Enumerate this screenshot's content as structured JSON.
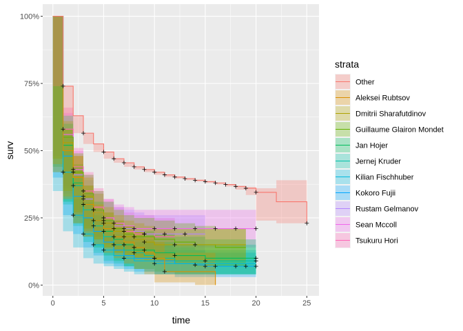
{
  "chart_data": {
    "type": "line",
    "subtype": "kaplan-meier step survival curves with confidence bands and censor marks",
    "xlabel": "time",
    "ylabel": "surv",
    "xlim": [
      -1,
      26.2
    ],
    "ylim": [
      -0.04,
      1.045
    ],
    "x_ticks": [
      0,
      5,
      10,
      15,
      20,
      25
    ],
    "y_ticks": [
      0,
      0.25,
      0.5,
      0.75,
      1.0
    ],
    "y_tick_labels": [
      "0%",
      "25%",
      "50%",
      "75%",
      "100%"
    ],
    "grid": true,
    "panel_background": "#EBEBEB",
    "legend_title": "strata",
    "legend_position": "right",
    "series": [
      {
        "name": "Other",
        "color": "#F8766D",
        "x": [
          0,
          1,
          2,
          3,
          4,
          5,
          6,
          7,
          8,
          9,
          10,
          11,
          12,
          13,
          14,
          15,
          16,
          17,
          18,
          19,
          20,
          22,
          25
        ],
        "y": [
          1.0,
          0.74,
          0.63,
          0.565,
          0.525,
          0.495,
          0.47,
          0.455,
          0.44,
          0.43,
          0.42,
          0.41,
          0.402,
          0.396,
          0.39,
          0.385,
          0.38,
          0.374,
          0.367,
          0.36,
          0.345,
          0.31,
          0.23
        ],
        "lower": [
          1.0,
          0.74,
          0.63,
          0.565,
          0.525,
          0.495,
          0.47,
          0.455,
          0.44,
          0.43,
          0.42,
          0.41,
          0.402,
          0.396,
          0.39,
          0.385,
          0.38,
          0.374,
          0.367,
          0.355,
          0.335,
          0.24,
          0.23
        ],
        "upper": [
          1.0,
          0.74,
          0.63,
          0.565,
          0.525,
          0.495,
          0.47,
          0.455,
          0.44,
          0.43,
          0.42,
          0.41,
          0.402,
          0.396,
          0.39,
          0.385,
          0.38,
          0.374,
          0.367,
          0.365,
          0.36,
          0.39,
          0.23
        ],
        "censor_x": [
          1,
          3,
          5,
          6,
          7,
          8,
          9,
          10,
          11,
          12,
          13,
          14,
          15,
          16,
          17,
          18,
          19,
          20,
          25
        ]
      },
      {
        "name": "Aleksei Rubtsov",
        "color": "#DB8E00",
        "x": [
          0,
          1,
          2,
          3,
          4,
          5,
          6,
          7,
          8,
          9,
          10,
          11,
          14,
          16
        ],
        "y": [
          1.0,
          0.5,
          0.4,
          0.3,
          0.24,
          0.21,
          0.18,
          0.16,
          0.14,
          0.12,
          0.1,
          0.05,
          0.05,
          0.0
        ],
        "lower": [
          1.0,
          0.42,
          0.32,
          0.23,
          0.18,
          0.15,
          0.12,
          0.1,
          0.08,
          0.06,
          0.04,
          0.01,
          0.01,
          0.0
        ],
        "upper": [
          1.0,
          0.58,
          0.48,
          0.37,
          0.3,
          0.27,
          0.24,
          0.22,
          0.2,
          0.18,
          0.16,
          0.12,
          0.12,
          0.0
        ],
        "censor_x": [
          4,
          6,
          8,
          10,
          11
        ]
      },
      {
        "name": "Dmitrii Sharafutdinov",
        "color": "#AEA200",
        "x": [
          0,
          1,
          2,
          3,
          4,
          5,
          6,
          7,
          8,
          9,
          10,
          12,
          14,
          16,
          18,
          19
        ],
        "y": [
          1.0,
          0.53,
          0.4,
          0.33,
          0.27,
          0.23,
          0.2,
          0.18,
          0.17,
          0.16,
          0.15,
          0.15,
          0.15,
          0.15,
          0.15,
          0.15
        ],
        "lower": [
          1.0,
          0.45,
          0.33,
          0.26,
          0.2,
          0.17,
          0.14,
          0.12,
          0.11,
          0.1,
          0.09,
          0.09,
          0.09,
          0.09,
          0.09,
          0.09
        ],
        "upper": [
          1.0,
          0.61,
          0.48,
          0.4,
          0.34,
          0.29,
          0.26,
          0.24,
          0.23,
          0.22,
          0.21,
          0.21,
          0.21,
          0.21,
          0.21,
          0.21
        ],
        "censor_x": [
          3,
          5,
          7,
          9,
          12
        ]
      },
      {
        "name": "Guillaume Glairon Mondet",
        "color": "#64B200",
        "x": [
          0,
          1,
          2,
          3,
          4,
          5,
          6,
          7,
          8,
          10,
          12,
          14,
          16,
          19
        ],
        "y": [
          1.0,
          0.55,
          0.42,
          0.34,
          0.28,
          0.24,
          0.21,
          0.19,
          0.18,
          0.17,
          0.16,
          0.15,
          0.14,
          0.14
        ],
        "lower": [
          1.0,
          0.47,
          0.35,
          0.27,
          0.21,
          0.17,
          0.14,
          0.12,
          0.11,
          0.1,
          0.09,
          0.08,
          0.07,
          0.07
        ],
        "upper": [
          1.0,
          0.63,
          0.49,
          0.41,
          0.35,
          0.31,
          0.28,
          0.26,
          0.25,
          0.24,
          0.23,
          0.22,
          0.21,
          0.21
        ],
        "censor_x": [
          2,
          4,
          6,
          8,
          14
        ]
      },
      {
        "name": "Jan Hojer",
        "color": "#00BD5C",
        "x": [
          0,
          1,
          2,
          3,
          4,
          5,
          6,
          7,
          8,
          10,
          12,
          15,
          20
        ],
        "y": [
          1.0,
          0.52,
          0.38,
          0.3,
          0.24,
          0.2,
          0.17,
          0.15,
          0.13,
          0.12,
          0.11,
          0.1,
          0.1
        ],
        "lower": [
          1.0,
          0.44,
          0.31,
          0.23,
          0.18,
          0.14,
          0.11,
          0.09,
          0.07,
          0.06,
          0.05,
          0.04,
          0.04
        ],
        "upper": [
          1.0,
          0.6,
          0.45,
          0.37,
          0.31,
          0.27,
          0.24,
          0.22,
          0.2,
          0.19,
          0.18,
          0.17,
          0.16
        ],
        "censor_x": [
          3,
          5,
          7,
          9,
          12,
          20
        ]
      },
      {
        "name": "Jernej Kruder",
        "color": "#00C1A7",
        "x": [
          0,
          1,
          2,
          3,
          4,
          5,
          6,
          7,
          8,
          9,
          10,
          12,
          15,
          20
        ],
        "y": [
          1.0,
          0.5,
          0.37,
          0.28,
          0.22,
          0.18,
          0.15,
          0.13,
          0.12,
          0.11,
          0.1,
          0.09,
          0.09,
          0.09
        ],
        "lower": [
          1.0,
          0.42,
          0.3,
          0.22,
          0.16,
          0.12,
          0.09,
          0.08,
          0.07,
          0.06,
          0.05,
          0.04,
          0.04,
          0.04
        ],
        "upper": [
          1.0,
          0.58,
          0.44,
          0.34,
          0.28,
          0.24,
          0.21,
          0.19,
          0.18,
          0.17,
          0.16,
          0.15,
          0.15,
          0.15
        ],
        "censor_x": [
          2,
          4,
          6,
          8,
          10,
          15,
          20
        ]
      },
      {
        "name": "Kilian Fischhuber",
        "color": "#00BADE",
        "x": [
          0,
          1,
          2,
          3,
          4,
          5,
          6,
          7,
          8,
          10,
          12,
          15,
          20
        ],
        "y": [
          1.0,
          0.42,
          0.26,
          0.19,
          0.15,
          0.13,
          0.11,
          0.1,
          0.09,
          0.08,
          0.08,
          0.08,
          0.08
        ],
        "lower": [
          1.0,
          0.35,
          0.2,
          0.14,
          0.1,
          0.08,
          0.07,
          0.06,
          0.05,
          0.04,
          0.04,
          0.04,
          0.04
        ],
        "upper": [
          1.0,
          0.5,
          0.32,
          0.25,
          0.2,
          0.18,
          0.16,
          0.15,
          0.14,
          0.13,
          0.13,
          0.13,
          0.13
        ],
        "censor_x": [
          1,
          2,
          3,
          4,
          5,
          7,
          10
        ]
      },
      {
        "name": "Kokoro Fujii",
        "color": "#00A6FF",
        "x": [
          0,
          1,
          2,
          3,
          4,
          5,
          6,
          7,
          8,
          10,
          12,
          14,
          15,
          16,
          18,
          19,
          20
        ],
        "y": [
          1.0,
          0.48,
          0.33,
          0.25,
          0.2,
          0.16,
          0.13,
          0.11,
          0.1,
          0.09,
          0.08,
          0.075,
          0.07,
          0.07,
          0.07,
          0.07,
          0.07
        ],
        "lower": [
          1.0,
          0.4,
          0.26,
          0.19,
          0.14,
          0.11,
          0.08,
          0.07,
          0.06,
          0.05,
          0.04,
          0.03,
          0.03,
          0.03,
          0.03,
          0.03,
          0.03
        ],
        "upper": [
          1.0,
          0.56,
          0.4,
          0.31,
          0.26,
          0.22,
          0.19,
          0.17,
          0.16,
          0.15,
          0.14,
          0.13,
          0.12,
          0.12,
          0.12,
          0.12,
          0.12
        ],
        "censor_x": [
          14,
          15,
          16,
          18,
          19,
          20
        ]
      },
      {
        "name": "Rustam Gelmanov",
        "color": "#B385FF",
        "x": [
          0,
          1,
          2,
          3,
          4,
          5,
          6,
          7,
          8,
          9,
          10,
          12,
          15
        ],
        "y": [
          1.0,
          0.55,
          0.41,
          0.32,
          0.27,
          0.24,
          0.22,
          0.21,
          0.2,
          0.19,
          0.19,
          0.19,
          0.19
        ],
        "lower": [
          1.0,
          0.47,
          0.34,
          0.25,
          0.2,
          0.17,
          0.15,
          0.14,
          0.13,
          0.12,
          0.12,
          0.12,
          0.12
        ],
        "upper": [
          1.0,
          0.63,
          0.48,
          0.39,
          0.34,
          0.31,
          0.29,
          0.28,
          0.27,
          0.26,
          0.26,
          0.26,
          0.26
        ],
        "censor_x": [
          3,
          5,
          7,
          9,
          11,
          13
        ]
      },
      {
        "name": "Sean Mccoll",
        "color": "#EF67EB",
        "x": [
          0,
          1,
          2,
          3,
          4,
          5,
          6,
          7,
          8,
          10,
          12,
          14,
          15,
          16,
          18,
          20
        ],
        "y": [
          1.0,
          0.56,
          0.43,
          0.34,
          0.28,
          0.25,
          0.23,
          0.22,
          0.21,
          0.21,
          0.21,
          0.21,
          0.21,
          0.21,
          0.21,
          0.21
        ],
        "lower": [
          1.0,
          0.48,
          0.36,
          0.27,
          0.21,
          0.18,
          0.16,
          0.15,
          0.14,
          0.14,
          0.14,
          0.14,
          0.14,
          0.14,
          0.14,
          0.14
        ],
        "upper": [
          1.0,
          0.64,
          0.5,
          0.41,
          0.35,
          0.32,
          0.3,
          0.29,
          0.28,
          0.28,
          0.28,
          0.28,
          0.28,
          0.28,
          0.28,
          0.28
        ],
        "censor_x": [
          2,
          4,
          6,
          8,
          10,
          12,
          14,
          16,
          18,
          20
        ]
      },
      {
        "name": "Tsukuru Hori",
        "color": "#FF63B6",
        "x": [
          0,
          1,
          2,
          3,
          4,
          5,
          6,
          7,
          8,
          10,
          12
        ],
        "y": [
          1.0,
          0.58,
          0.44,
          0.35,
          0.29,
          0.25,
          0.22,
          0.2,
          0.19,
          0.18,
          0.18
        ],
        "lower": [
          1.0,
          0.5,
          0.37,
          0.28,
          0.22,
          0.18,
          0.15,
          0.13,
          0.12,
          0.11,
          0.11
        ],
        "upper": [
          1.0,
          0.66,
          0.51,
          0.42,
          0.36,
          0.32,
          0.29,
          0.27,
          0.26,
          0.25,
          0.25
        ],
        "censor_x": [
          1,
          3,
          5,
          7,
          9
        ]
      }
    ]
  }
}
